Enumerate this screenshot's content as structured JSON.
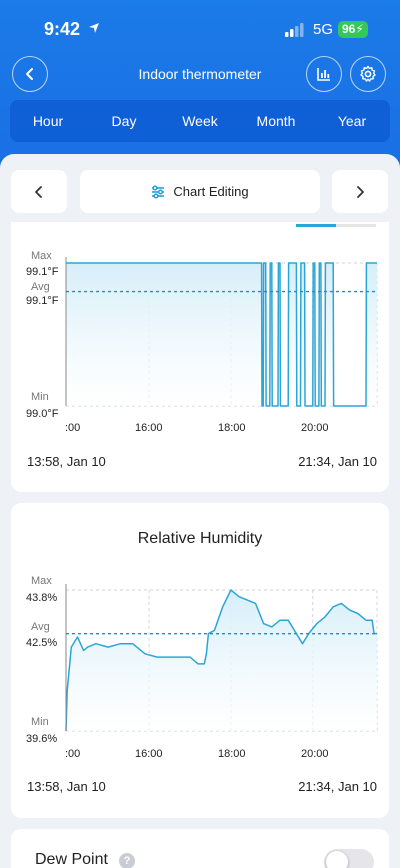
{
  "status": {
    "time": "9:42",
    "network": "5G",
    "battery": "96"
  },
  "header": {
    "title": "Indoor thermometer"
  },
  "tabs": [
    "Hour",
    "Day",
    "Week",
    "Month",
    "Year"
  ],
  "toolbar": {
    "edit_label": "Chart Editing"
  },
  "temperature": {
    "labels": {
      "max": "Max",
      "max_value": "99.1°F",
      "avg": "Avg",
      "avg_value": "99.1°F",
      "min": "Min",
      "min_value": "99.0°F"
    },
    "x_ticks": [
      ":00",
      "16:00",
      "18:00",
      "20:00"
    ],
    "range_start": "13:58,  Jan 10",
    "range_end": "21:34,  Jan 10"
  },
  "humidity": {
    "title": "Relative Humidity",
    "labels": {
      "max": "Max",
      "max_value": "43.8%",
      "avg": "Avg",
      "avg_value": "42.5%",
      "min": "Min",
      "min_value": "39.6%"
    },
    "x_ticks": [
      ":00",
      "16:00",
      "18:00",
      "20:00"
    ],
    "range_start": "13:58,  Jan 10",
    "range_end": "21:34,  Jan 10"
  },
  "dew_point": {
    "label": "Dew Point",
    "help": "?",
    "enabled": false
  },
  "colors": {
    "brand": "#1a73e8",
    "line": "#2aa6d6",
    "fill": "#d6eef9",
    "avg": "#1f8fc9"
  },
  "chart_data": [
    {
      "type": "line",
      "title": "",
      "xlabel": "",
      "ylabel": "",
      "x_ticks": [
        ":00",
        "16:00",
        "18:00",
        "20:00"
      ],
      "ylim": [
        99.0,
        99.1
      ],
      "avg": 99.08,
      "series": [
        {
          "x": [
            13.97,
            14.5,
            15.5,
            16.5,
            17.5,
            18.5,
            18.75,
            18.76,
            18.79,
            18.8,
            18.85,
            18.86,
            18.95,
            18.96,
            19.0,
            19.01,
            19.15,
            19.16,
            19.2,
            19.21,
            19.4,
            19.41,
            19.6,
            19.61,
            19.7,
            19.71,
            19.8,
            19.81,
            20.0,
            20.01,
            20.05,
            20.06,
            20.15,
            20.16,
            20.2,
            20.21,
            20.3,
            20.31,
            20.5,
            20.51,
            21.3,
            21.31,
            21.57
          ],
          "y": [
            99.1,
            99.1,
            99.1,
            99.1,
            99.1,
            99.1,
            99.1,
            99.0,
            99.0,
            99.1,
            99.1,
            99.0,
            99.0,
            99.1,
            99.1,
            99.0,
            99.0,
            99.1,
            99.1,
            99.0,
            99.0,
            99.1,
            99.1,
            99.0,
            99.0,
            99.1,
            99.1,
            99.0,
            99.0,
            99.1,
            99.1,
            99.0,
            99.0,
            99.1,
            99.1,
            99.0,
            99.0,
            99.1,
            99.1,
            99.0,
            99.0,
            99.1,
            99.1
          ]
        }
      ]
    },
    {
      "type": "line",
      "title": "Relative Humidity",
      "xlabel": "",
      "ylabel": "",
      "x_ticks": [
        ":00",
        "16:00",
        "18:00",
        "20:00"
      ],
      "ylim": [
        39.6,
        43.8
      ],
      "avg": 42.5,
      "series": [
        {
          "x": [
            13.97,
            14.0,
            14.1,
            14.25,
            14.4,
            14.5,
            14.7,
            15.0,
            15.3,
            15.6,
            15.9,
            16.2,
            16.5,
            16.8,
            17.0,
            17.2,
            17.35,
            17.4,
            17.45,
            17.6,
            17.8,
            18.0,
            18.2,
            18.4,
            18.6,
            18.8,
            19.0,
            19.2,
            19.4,
            19.6,
            19.75,
            19.9,
            20.1,
            20.3,
            20.5,
            20.7,
            20.9,
            21.1,
            21.3,
            21.45,
            21.5,
            21.57
          ],
          "y": [
            39.6,
            40.8,
            42.1,
            42.4,
            42.0,
            42.1,
            42.2,
            42.1,
            42.2,
            42.2,
            41.9,
            41.8,
            41.8,
            41.8,
            41.8,
            41.6,
            41.6,
            41.9,
            42.5,
            42.6,
            43.3,
            43.8,
            43.6,
            43.5,
            43.4,
            42.8,
            42.7,
            42.9,
            42.9,
            42.5,
            42.2,
            42.5,
            42.8,
            43.0,
            43.3,
            43.4,
            43.2,
            43.1,
            42.9,
            42.9,
            42.5,
            42.5
          ]
        }
      ]
    }
  ]
}
